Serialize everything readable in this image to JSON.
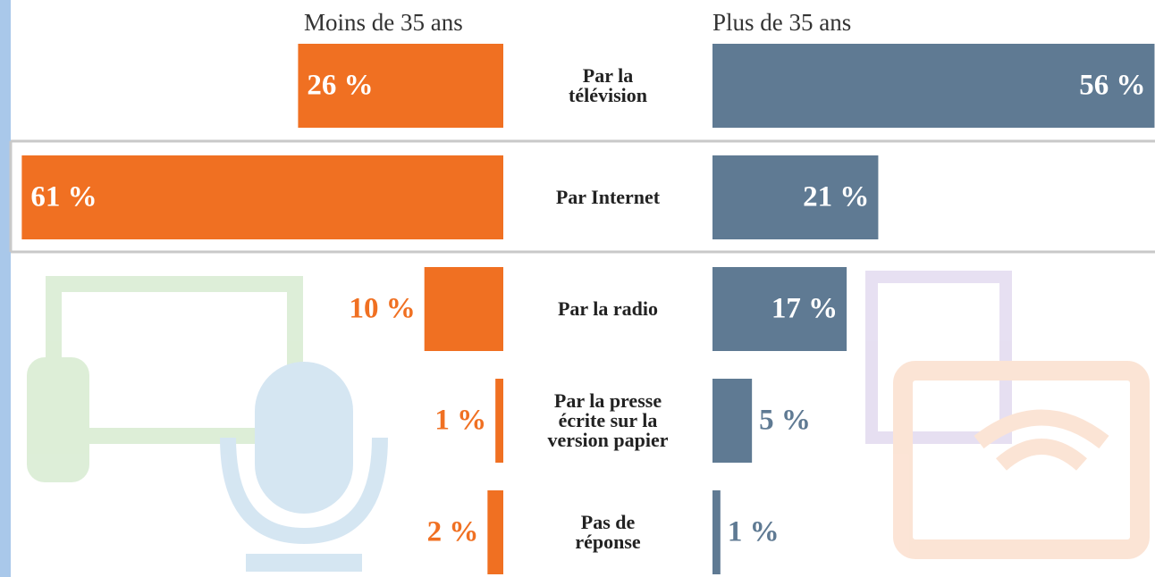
{
  "chart_data": {
    "type": "butterfly-bar",
    "categories": [
      "Par la\ntélévision",
      "Par Internet",
      "Par la radio",
      "Par la presse\nécrite sur la\nversion papier",
      "Pas de\nréponse"
    ],
    "series": [
      {
        "name": "Moins de 35 ans",
        "color": "#f07022",
        "values": [
          26,
          61,
          10,
          1,
          2
        ],
        "value_labels": [
          "26 %",
          "61 %",
          "10 %",
          "1 %",
          "2 %"
        ]
      },
      {
        "name": "Plus de 35 ans",
        "color": "#5f7a93",
        "values": [
          56,
          21,
          17,
          5,
          1
        ],
        "value_labels": [
          "56 %",
          "21 %",
          "17 %",
          "5 %",
          "1 %"
        ]
      }
    ]
  }
}
